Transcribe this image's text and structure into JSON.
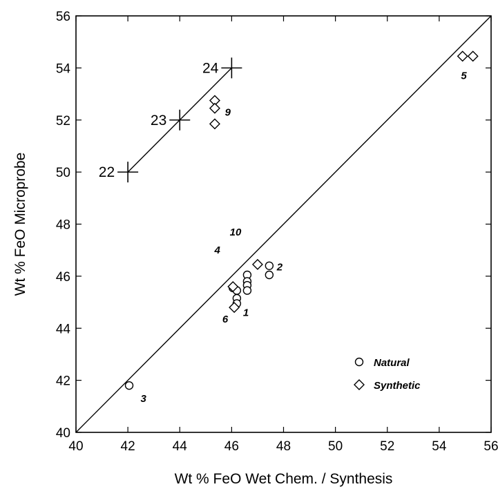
{
  "chart_data": {
    "type": "scatter",
    "title": "",
    "xlabel": "Wt % FeO Wet Chem. / Synthesis",
    "ylabel": "Wt % FeO Microprobe",
    "xlim": [
      40,
      56
    ],
    "ylim": [
      40,
      56
    ],
    "xticks": [
      "40",
      "42",
      "44",
      "46",
      "48",
      "50",
      "52",
      "54",
      "56"
    ],
    "yticks": [
      "40",
      "42",
      "44",
      "46",
      "48",
      "50",
      "52",
      "54",
      "56"
    ],
    "grid": false,
    "legend_position": "bottom-right",
    "series": [
      {
        "name": "Natural",
        "marker": "circle",
        "points": [
          {
            "x": 42.05,
            "y": 41.8
          },
          {
            "x": 46.05,
            "y": 45.55
          },
          {
            "x": 46.2,
            "y": 45.45
          },
          {
            "x": 46.2,
            "y": 45.15
          },
          {
            "x": 46.2,
            "y": 44.95
          },
          {
            "x": 46.6,
            "y": 46.05
          },
          {
            "x": 46.6,
            "y": 45.8
          },
          {
            "x": 46.6,
            "y": 45.65
          },
          {
            "x": 46.6,
            "y": 45.45
          },
          {
            "x": 47.45,
            "y": 46.4
          },
          {
            "x": 47.45,
            "y": 46.05
          }
        ]
      },
      {
        "name": "Synthetic",
        "marker": "diamond",
        "points": [
          {
            "x": 54.9,
            "y": 54.45
          },
          {
            "x": 55.3,
            "y": 54.45
          },
          {
            "x": 45.35,
            "y": 52.75
          },
          {
            "x": 45.35,
            "y": 52.45
          },
          {
            "x": 45.35,
            "y": 51.85
          },
          {
            "x": 47.0,
            "y": 46.45
          },
          {
            "x": 46.05,
            "y": 45.6
          },
          {
            "x": 46.1,
            "y": 44.8
          }
        ]
      }
    ],
    "standards": [
      {
        "label": "22",
        "x": 42,
        "y": 50
      },
      {
        "label": "23",
        "x": 44,
        "y": 52
      },
      {
        "label": "24",
        "x": 46,
        "y": 54
      }
    ],
    "reference_lines": [
      {
        "x1": 40,
        "y1": 40,
        "x2": 56,
        "y2": 56
      },
      {
        "x1": 42,
        "y1": 50,
        "x2": 46,
        "y2": 54
      }
    ],
    "annotations": [
      {
        "text": "1",
        "x": 46.55,
        "y": 44.6
      },
      {
        "text": "2",
        "x": 47.85,
        "y": 46.35
      },
      {
        "text": "3",
        "x": 42.6,
        "y": 41.3
      },
      {
        "text": "4",
        "x": 45.45,
        "y": 47.0
      },
      {
        "text": "5",
        "x": 54.95,
        "y": 53.7
      },
      {
        "text": "6",
        "x": 45.75,
        "y": 44.35
      },
      {
        "text": "9",
        "x": 45.85,
        "y": 52.3
      },
      {
        "text": "10",
        "x": 46.15,
        "y": 47.7
      }
    ]
  }
}
